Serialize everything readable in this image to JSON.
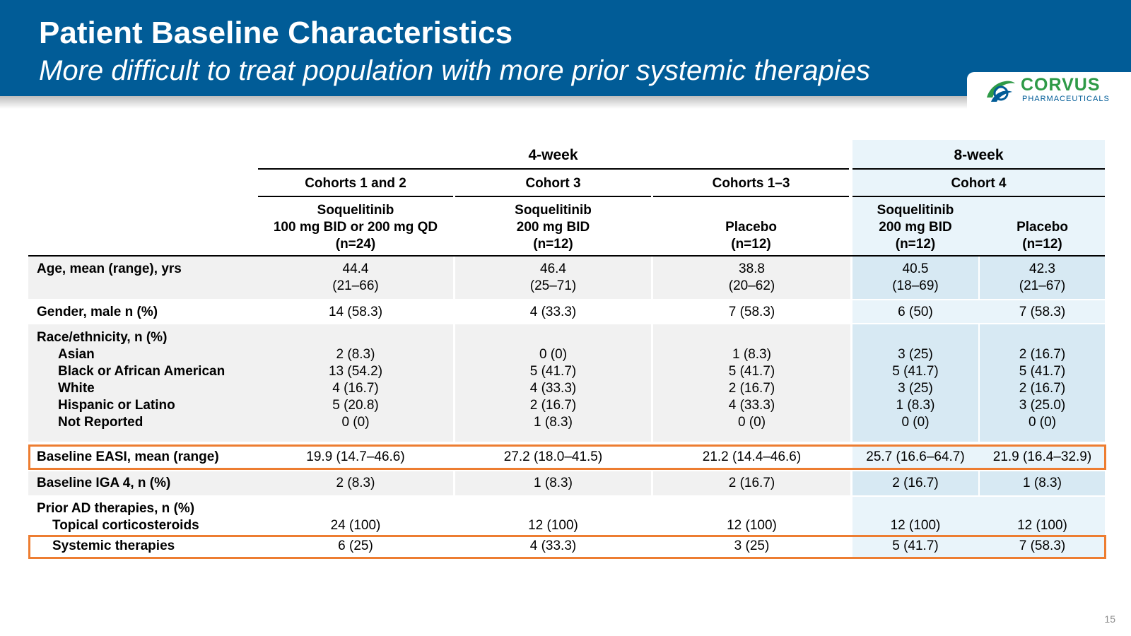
{
  "header": {
    "title": "Patient Baseline Characteristics",
    "subtitle": "More difficult to treat population with more prior systemic therapies"
  },
  "logo": {
    "name": "CORVUS",
    "sub": "PHARMACEUTICALS",
    "color_green": "#2e9a47",
    "color_blue": "#015c97"
  },
  "page_number": "15",
  "table": {
    "groups": {
      "four_week": "4-week",
      "eight_week": "8-week"
    },
    "cohorts": [
      "Cohorts 1 and 2",
      "Cohort 3",
      "Cohorts 1–3",
      "Cohort 4"
    ],
    "arms": [
      {
        "l1": "Soquelitinib",
        "l2": "100 mg BID or 200 mg QD",
        "l3": "(n=24)"
      },
      {
        "l1": "Soquelitinib",
        "l2": "200 mg BID",
        "l3": "(n=12)"
      },
      {
        "l1": "",
        "l2": "Placebo",
        "l3": "(n=12)"
      },
      {
        "l1": "Soquelitinib",
        "l2": "200 mg BID",
        "l3": "(n=12)"
      },
      {
        "l1": "",
        "l2": "Placebo",
        "l3": "(n=12)"
      }
    ],
    "age": {
      "label": "Age, mean (range), yrs",
      "means": [
        "44.4",
        "46.4",
        "38.8",
        "40.5",
        "42.3"
      ],
      "ranges": [
        "(21–66)",
        "(25–71)",
        "(20–62)",
        "(18–69)",
        "(21–67)"
      ]
    },
    "gender": {
      "label": "Gender, male n (%)",
      "values": [
        "14 (58.3)",
        "4 (33.3)",
        "7 (58.3)",
        "6 (50)",
        "7 (58.3)"
      ]
    },
    "race": {
      "label": "Race/ethnicity, n (%)",
      "rows": [
        {
          "label": "Asian",
          "values": [
            "2 (8.3)",
            "0 (0)",
            "1 (8.3)",
            "3 (25)",
            "2 (16.7)"
          ]
        },
        {
          "label": "Black or African American",
          "values": [
            "13 (54.2)",
            "5 (41.7)",
            "5 (41.7)",
            "5 (41.7)",
            "5 (41.7)"
          ]
        },
        {
          "label": "White",
          "values": [
            "4 (16.7)",
            "4 (33.3)",
            "2 (16.7)",
            "3 (25)",
            "2 (16.7)"
          ]
        },
        {
          "label": "Hispanic or Latino",
          "values": [
            "5 (20.8)",
            "2 (16.7)",
            "4 (33.3)",
            "1 (8.3)",
            "3 (25.0)"
          ]
        },
        {
          "label": "Not Reported",
          "values": [
            "0 (0)",
            "1 (8.3)",
            "0 (0)",
            "0 (0)",
            "0 (0)"
          ]
        }
      ]
    },
    "easi": {
      "label": "Baseline EASI, mean (range)",
      "values": [
        "19.9 (14.7–46.6)",
        "27.2 (18.0–41.5)",
        "21.2 (14.4–46.6)",
        "25.7 (16.6–64.7)",
        "21.9 (16.4–32.9)"
      ]
    },
    "iga": {
      "label": "Baseline IGA 4, n (%)",
      "values": [
        "2 (8.3)",
        "1 (8.3)",
        "2 (16.7)",
        "2 (16.7)",
        "1 (8.3)"
      ]
    },
    "prior": {
      "label": "Prior AD therapies, n (%)",
      "topical": {
        "label": "Topical corticosteroids",
        "values": [
          "24 (100)",
          "12 (100)",
          "12 (100)",
          "12 (100)",
          "12 (100)"
        ]
      },
      "systemic": {
        "label": "Systemic therapies",
        "values": [
          "6 (25)",
          "4 (33.3)",
          "3 (25)",
          "5 (41.7)",
          "7 (58.3)"
        ]
      }
    },
    "highlight_color": "#ed7d31"
  }
}
